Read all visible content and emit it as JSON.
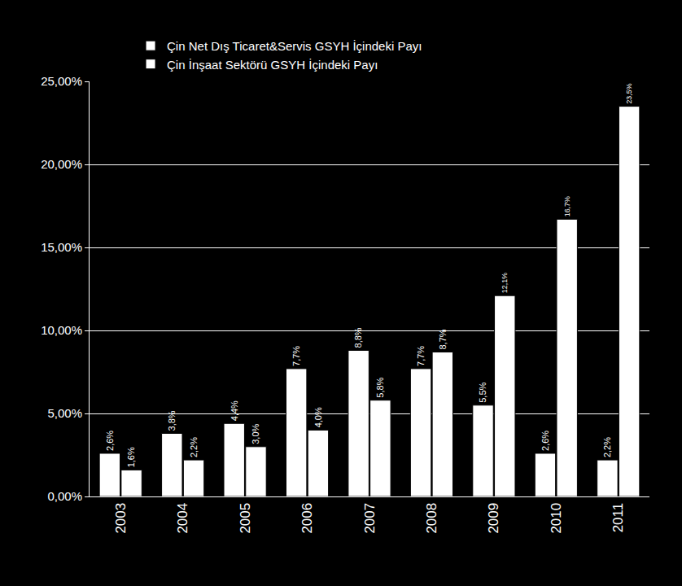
{
  "chart_data": {
    "type": "bar",
    "categories": [
      "2003",
      "2004",
      "2005",
      "2006",
      "2007",
      "2008",
      "2009",
      "2010",
      "2011"
    ],
    "series": [
      {
        "name": "Çin Net Dış Ticaret&Servis GSYH İçindeki Payı",
        "color": "#ffffff",
        "values": [
          2.6,
          3.8,
          4.4,
          7.7,
          8.8,
          7.7,
          5.5,
          2.6,
          2.2
        ],
        "value_labels": [
          "2,6%",
          "3,8%",
          "4,4%",
          "7,7%",
          "8,8%",
          "7,7%",
          "5,5%",
          "2,6%",
          "2,2%"
        ]
      },
      {
        "name": "Çin İnşaat Sektörü GSYH İçindeki Payı",
        "color": "#ffffff",
        "values": [
          1.6,
          2.2,
          3.0,
          4.0,
          5.8,
          8.7,
          12.1,
          16.7,
          23.5
        ],
        "value_labels": [
          "1,6%",
          "2,2%",
          "3,0%",
          "4,0%",
          "5,8%",
          "8,7%",
          "12,1%",
          "16,7%",
          "23,5%"
        ]
      }
    ],
    "ylim": [
      0,
      25
    ],
    "yticks": [
      {
        "value": 0,
        "label": "0,00%"
      },
      {
        "value": 5,
        "label": "5,00%"
      },
      {
        "value": 10,
        "label": "10,00%"
      },
      {
        "value": 15,
        "label": "15,00%"
      },
      {
        "value": 20,
        "label": "20,00%"
      },
      {
        "value": 25,
        "label": "25,00%"
      }
    ],
    "grid": true,
    "legend": "top",
    "data_labels": true
  }
}
